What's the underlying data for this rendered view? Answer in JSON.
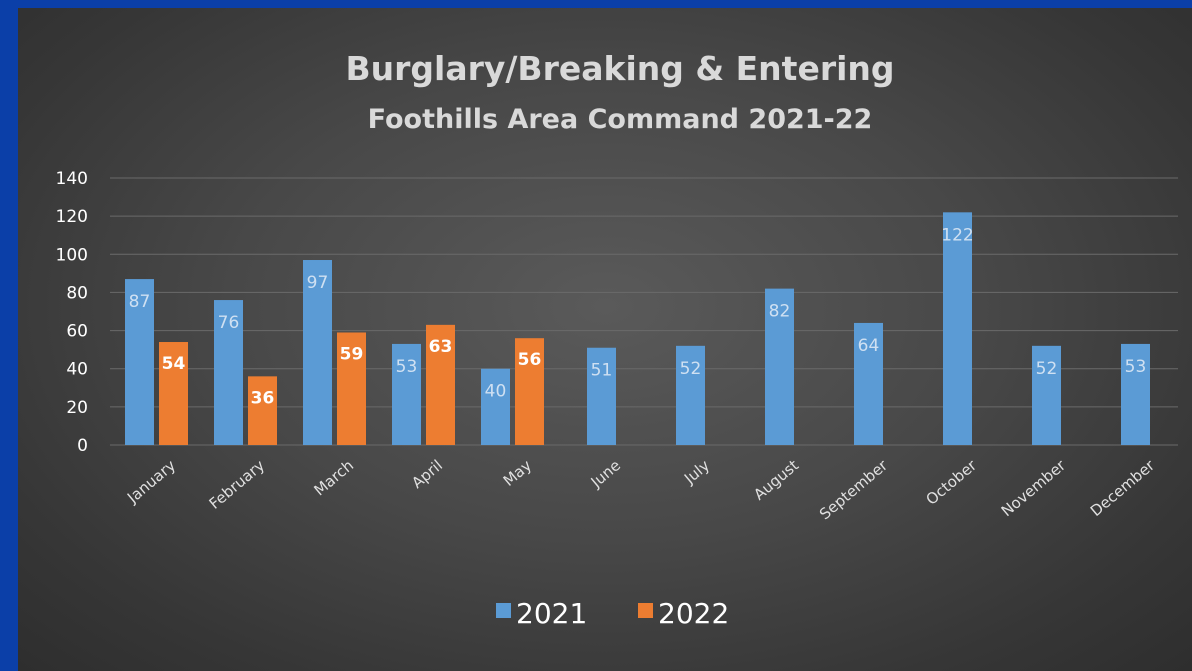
{
  "colors": {
    "frame": "#0b3fa8",
    "series_2021": "#5b9bd5",
    "series_2022": "#ed7d31",
    "gridline": "#6a6a6a"
  },
  "chart_data": {
    "type": "bar",
    "title": "Burglary/Breaking & Entering",
    "subtitle": "Foothills Area Command 2021-22",
    "xlabel": "",
    "ylabel": "",
    "ylim": [
      0,
      140
    ],
    "yticks": [
      0,
      20,
      40,
      60,
      80,
      100,
      120,
      140
    ],
    "grid": true,
    "legend_position": "bottom",
    "categories": [
      "January",
      "February",
      "March",
      "April",
      "May",
      "June",
      "July",
      "August",
      "September",
      "October",
      "November",
      "December"
    ],
    "series": [
      {
        "name": "2021",
        "color": "#5b9bd5",
        "values": [
          87,
          76,
          97,
          53,
          40,
          51,
          52,
          82,
          64,
          122,
          52,
          53
        ]
      },
      {
        "name": "2022",
        "color": "#ed7d31",
        "values": [
          54,
          36,
          59,
          63,
          56,
          null,
          null,
          null,
          null,
          null,
          null,
          null
        ]
      }
    ]
  }
}
